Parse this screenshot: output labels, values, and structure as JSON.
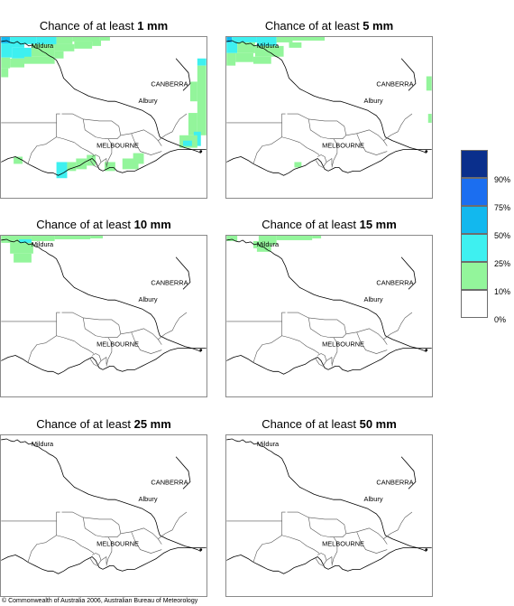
{
  "panels": [
    {
      "title_prefix": "Chance of at least ",
      "amount": "1 mm"
    },
    {
      "title_prefix": "Chance of at least ",
      "amount": "5 mm"
    },
    {
      "title_prefix": "Chance of at least ",
      "amount": "10 mm"
    },
    {
      "title_prefix": "Chance of at least ",
      "amount": "15 mm"
    },
    {
      "title_prefix": "Chance of at least ",
      "amount": "25 mm"
    },
    {
      "title_prefix": "Chance of at least ",
      "amount": "50 mm"
    }
  ],
  "map_labels": {
    "mildura": "Mildura",
    "canberra": "CANBERRA",
    "albury": "Albury",
    "melbourne": "MELBOURNE"
  },
  "legend": {
    "ticks": [
      "90%",
      "75%",
      "50%",
      "25%",
      "10%",
      "0%"
    ],
    "colors": [
      "#0a2f8c",
      "#1b6ef0",
      "#12b8ee",
      "#3ef0f0",
      "#93f59b",
      "#ffffff"
    ]
  },
  "coverage_colors": {
    "ten_to_25": "#93f59b",
    "twenty_five_to_50": "#3ef0f0",
    "fifty_to_75": "#12b8ee"
  },
  "footer": {
    "copyright": "© Commonwealth of Australia 2006, Australian Bureau of Meteorology"
  }
}
